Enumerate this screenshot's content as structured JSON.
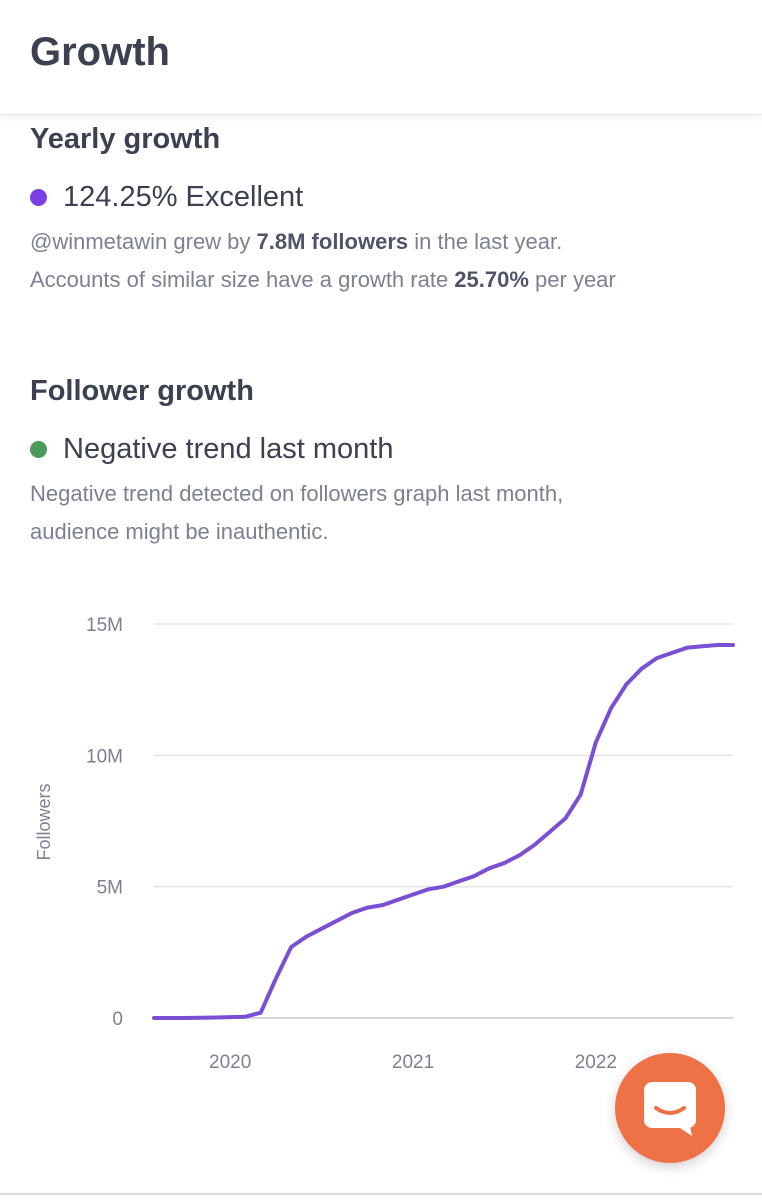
{
  "header": {
    "title": "Growth"
  },
  "yearly": {
    "title": "Yearly growth",
    "metric": "124.25% Excellent",
    "dot_color": "#7b3fe4",
    "line1": {
      "handle": "@winmetawin",
      "pre": " grew by ",
      "bold": "7.8M followers",
      "post": " in the last year."
    },
    "line2": {
      "pre": "Accounts of similar size have a growth rate ",
      "bold": "25.70%",
      "post": " per year"
    }
  },
  "follower": {
    "title": "Follower growth",
    "metric": "Negative trend last month",
    "dot_color": "#4c9a5a",
    "desc1": "Negative trend detected on followers graph last month,",
    "desc2": "audience might be inauthentic."
  },
  "chart_data": {
    "type": "line",
    "ylabel": "Followers",
    "y_ticks": [
      "0",
      "5M",
      "10M",
      "15M"
    ],
    "ylim": [
      0,
      15000000
    ],
    "x_ticks": [
      "2020",
      "2021",
      "2022"
    ],
    "xlim": [
      "2019-08",
      "2022-10"
    ],
    "grid": true,
    "line_color": "#7b4fd4",
    "series": [
      {
        "x": [
          "2019-08",
          "2019-10",
          "2019-12",
          "2020-02",
          "2020-03",
          "2020-04",
          "2020-05",
          "2020-06",
          "2020-07",
          "2020-08",
          "2020-09",
          "2020-10",
          "2020-11",
          "2020-12",
          "2021-01",
          "2021-02",
          "2021-03",
          "2021-04",
          "2021-05",
          "2021-06",
          "2021-07",
          "2021-08",
          "2021-09",
          "2021-10",
          "2021-11",
          "2021-12",
          "2022-01",
          "2022-02",
          "2022-03",
          "2022-04",
          "2022-05",
          "2022-06",
          "2022-07",
          "2022-08",
          "2022-09",
          "2022-10"
        ],
        "values": [
          0,
          0,
          20000,
          50000,
          200000,
          1500000,
          2700000,
          3100000,
          3400000,
          3700000,
          4000000,
          4200000,
          4300000,
          4500000,
          4700000,
          4900000,
          5000000,
          5200000,
          5400000,
          5700000,
          5900000,
          6200000,
          6600000,
          7100000,
          7600000,
          8500000,
          10500000,
          11800000,
          12700000,
          13300000,
          13700000,
          13900000,
          14100000,
          14150000,
          14200000,
          14200000
        ]
      }
    ]
  },
  "chat": {
    "icon": "chat-bubble-icon",
    "color": "#ef7146"
  }
}
